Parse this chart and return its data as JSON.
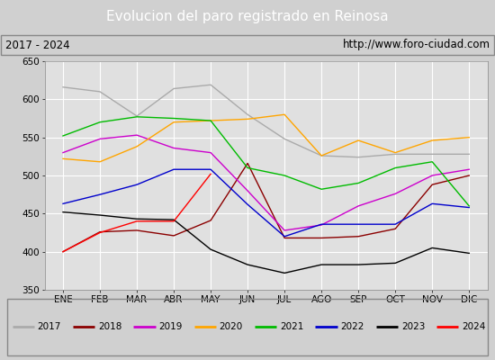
{
  "title": "Evolucion del paro registrado en Reinosa",
  "subtitle_left": "2017 - 2024",
  "subtitle_right": "http://www.foro-ciudad.com",
  "months": [
    "ENE",
    "FEB",
    "MAR",
    "ABR",
    "MAY",
    "JUN",
    "JUL",
    "AGO",
    "SEP",
    "OCT",
    "NOV",
    "DIC"
  ],
  "series": {
    "2017": {
      "color": "#aaaaaa",
      "data": [
        616,
        610,
        578,
        614,
        619,
        580,
        548,
        526,
        524,
        528,
        528,
        528
      ]
    },
    "2018": {
      "color": "#8b0000",
      "data": [
        400,
        426,
        428,
        421,
        441,
        516,
        418,
        418,
        420,
        430,
        488,
        500
      ]
    },
    "2019": {
      "color": "#cc00cc",
      "data": [
        530,
        548,
        553,
        536,
        530,
        480,
        428,
        435,
        460,
        476,
        500,
        508
      ]
    },
    "2020": {
      "color": "#ffa500",
      "data": [
        522,
        518,
        538,
        570,
        572,
        574,
        580,
        526,
        546,
        530,
        546,
        550
      ]
    },
    "2021": {
      "color": "#00bb00",
      "data": [
        552,
        570,
        577,
        575,
        572,
        510,
        500,
        482,
        490,
        510,
        518,
        460
      ]
    },
    "2022": {
      "color": "#0000cc",
      "data": [
        463,
        475,
        488,
        508,
        508,
        462,
        420,
        436,
        436,
        436,
        463,
        458
      ]
    },
    "2023": {
      "color": "#000000",
      "data": [
        452,
        448,
        443,
        442,
        403,
        383,
        372,
        383,
        383,
        385,
        405,
        398
      ]
    },
    "2024": {
      "color": "#ff0000",
      "data": [
        400,
        425,
        440,
        440,
        502,
        null,
        null,
        null,
        null,
        null,
        null,
        null
      ]
    }
  },
  "ylim": [
    350,
    650
  ],
  "yticks": [
    350,
    400,
    450,
    500,
    550,
    600,
    650
  ],
  "title_bg": "#4472c4",
  "title_color": "#ffffff",
  "plot_bg": "#e0e0e0",
  "grid_color": "#ffffff",
  "subtitle_bg": "#d0d0d0"
}
